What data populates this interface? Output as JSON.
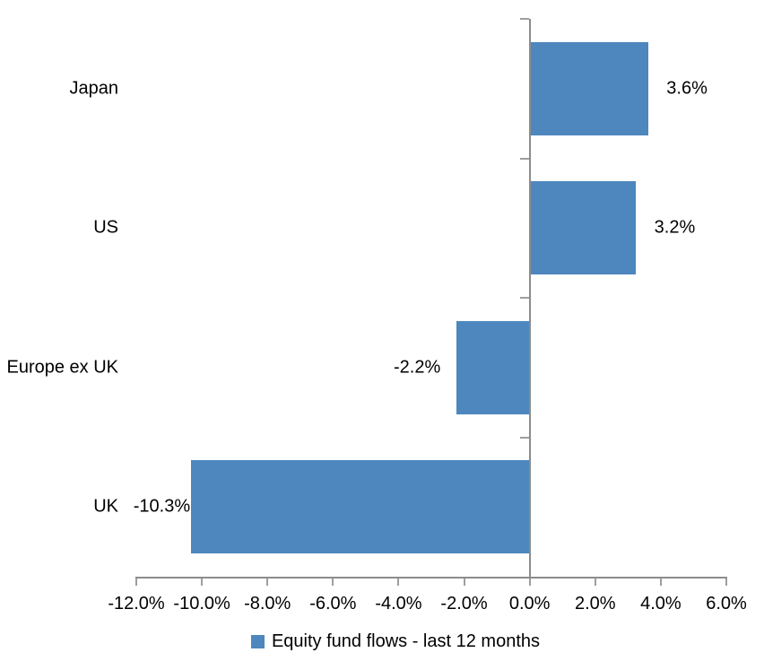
{
  "chart_data": {
    "type": "bar",
    "orientation": "horizontal",
    "title": "",
    "categories": [
      "Japan",
      "US",
      "Europe ex UK",
      "UK"
    ],
    "values": [
      3.6,
      3.2,
      -2.2,
      -10.3
    ],
    "value_labels": [
      "3.6%",
      "3.2%",
      "-2.2%",
      "-10.3%"
    ],
    "x_ticks": [
      {
        "value": -12,
        "label": "-12.0%"
      },
      {
        "value": -10,
        "label": "-10.0%"
      },
      {
        "value": -8,
        "label": "-8.0%"
      },
      {
        "value": -6,
        "label": "-6.0%"
      },
      {
        "value": -4,
        "label": "-4.0%"
      },
      {
        "value": -2,
        "label": "-2.0%"
      },
      {
        "value": 0,
        "label": "0.0%"
      },
      {
        "value": 2,
        "label": "2.0%"
      },
      {
        "value": 4,
        "label": "4.0%"
      },
      {
        "value": 6,
        "label": "6.0%"
      }
    ],
    "xlim": [
      -12,
      6
    ],
    "grid": false,
    "legend_position": "bottom",
    "legend": "Equity fund flows - last 12 months",
    "bar_color": "#4d87be",
    "axis_color": "#8c8c8c",
    "tick_color": "#9e9e9e",
    "text_color": "#000000",
    "background_color": "#ffffff"
  }
}
